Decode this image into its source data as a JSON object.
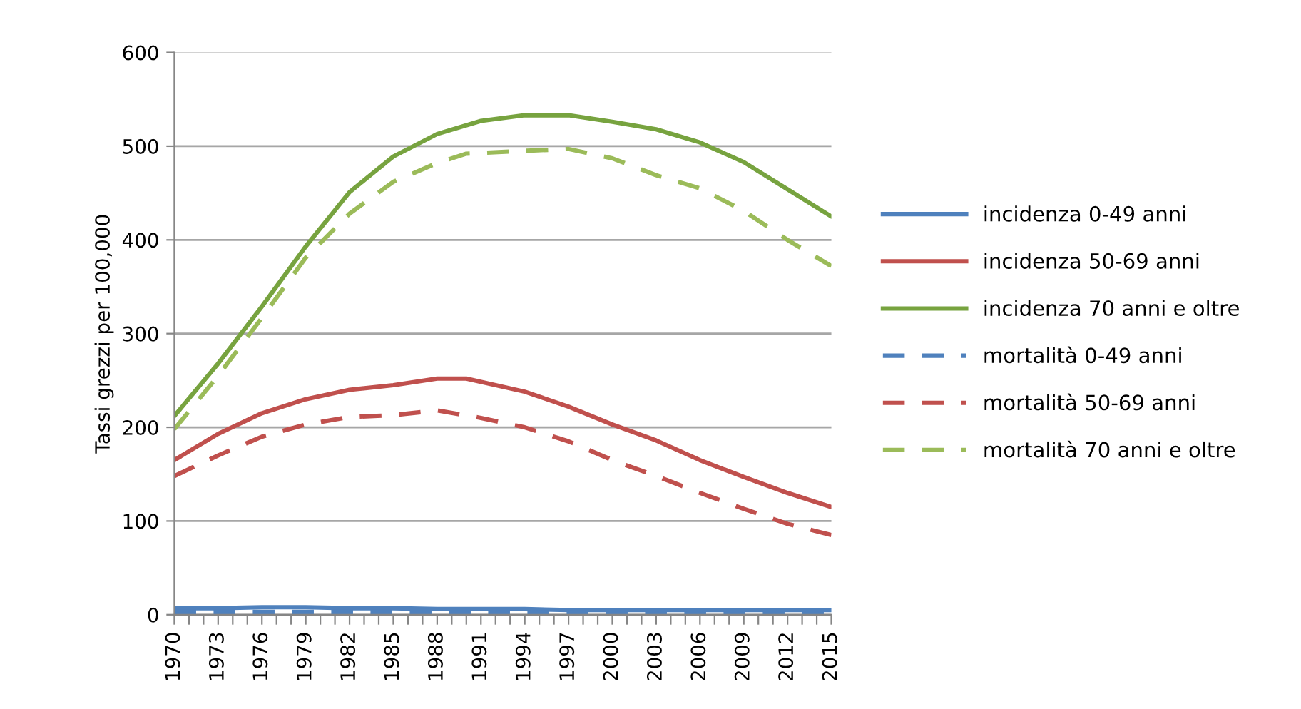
{
  "chart_data": {
    "type": "line",
    "ylabel": "Tassi grezzi per 100,000",
    "xlim": [
      1970,
      2015
    ],
    "xticks": [
      1970,
      {
        "value": 1971,
        "label": null
      },
      {
        "value": 1972,
        "label": null
      },
      1973,
      {
        "value": 1974,
        "label": null
      },
      {
        "value": 1975,
        "label": null
      },
      1976,
      {
        "value": 1977,
        "label": null
      },
      {
        "value": 1978,
        "label": null
      },
      1979,
      {
        "value": 1980,
        "label": null
      },
      {
        "value": 1981,
        "label": null
      },
      1982,
      {
        "value": 1983,
        "label": null
      },
      {
        "value": 1984,
        "label": null
      },
      1985,
      {
        "value": 1986,
        "label": null
      },
      {
        "value": 1987,
        "label": null
      },
      1988,
      {
        "value": 1989,
        "label": null
      },
      {
        "value": 1990,
        "label": null
      },
      1991,
      {
        "value": 1992,
        "label": null
      },
      {
        "value": 1993,
        "label": null
      },
      1994,
      {
        "value": 1995,
        "label": null
      },
      {
        "value": 1996,
        "label": null
      },
      1997,
      {
        "value": 1998,
        "label": null
      },
      {
        "value": 1999,
        "label": null
      },
      2000,
      {
        "value": 2001,
        "label": null
      },
      {
        "value": 2002,
        "label": null
      },
      2003,
      {
        "value": 2004,
        "label": null
      },
      {
        "value": 2005,
        "label": null
      },
      2006,
      {
        "value": 2007,
        "label": null
      },
      {
        "value": 2008,
        "label": null
      },
      2009,
      {
        "value": 2010,
        "label": null
      },
      {
        "value": 2011,
        "label": null
      },
      2012,
      {
        "value": 2013,
        "label": null
      },
      {
        "value": 2014,
        "label": null
      },
      2015
    ],
    "ylim": [
      0,
      600
    ],
    "yticks": [
      0,
      100,
      200,
      300,
      400,
      500,
      600
    ],
    "grid": "y",
    "legend": "right",
    "marker": "none",
    "series": [
      {
        "name": "incidenza 0-49 anni",
        "color": "#4f81bd",
        "line_style": "solid",
        "x": [
          1970,
          1973,
          1976,
          1979,
          1982,
          1985,
          1988,
          1991,
          1994,
          1997,
          2000,
          2003,
          2006,
          2009,
          2012,
          2015
        ],
        "values": [
          7,
          7,
          8,
          8,
          7,
          7,
          6,
          6,
          6,
          5,
          5,
          5,
          5,
          5,
          5,
          5
        ]
      },
      {
        "name": "incidenza 50-69 anni",
        "color": "#c0504d",
        "line_style": "solid",
        "x": [
          1970,
          1973,
          1976,
          1979,
          1982,
          1985,
          1988,
          1990,
          1994,
          1997,
          2000,
          2003,
          2006,
          2009,
          2012,
          2015
        ],
        "values": [
          165,
          193,
          215,
          230,
          240,
          245,
          252,
          252,
          238,
          222,
          203,
          186,
          165,
          147,
          130,
          115
        ]
      },
      {
        "name": "incidenza 70 anni e oltre",
        "color": "#77a33f",
        "line_style": "solid",
        "x": [
          1970,
          1973,
          1976,
          1979,
          1982,
          1985,
          1988,
          1991,
          1994,
          1997,
          2000,
          2003,
          2006,
          2009,
          2012,
          2015
        ],
        "values": [
          212,
          268,
          329,
          393,
          451,
          489,
          513,
          527,
          533,
          533,
          526,
          518,
          504,
          483,
          454,
          425
        ]
      },
      {
        "name": "mortalità 0-49 anni",
        "color": "#4f81bd",
        "line_style": "dashed",
        "x": [
          1970,
          1985,
          2000,
          2015
        ],
        "values": [
          3,
          3,
          2,
          2
        ]
      },
      {
        "name": "mortalità 50-69 anni",
        "color": "#c0504d",
        "line_style": "dashed",
        "x": [
          1970,
          1973,
          1976,
          1979,
          1982,
          1985,
          1988,
          1991,
          1994,
          1997,
          2000,
          2003,
          2006,
          2009,
          2012,
          2015
        ],
        "values": [
          148,
          170,
          190,
          203,
          211,
          213,
          218,
          210,
          200,
          185,
          165,
          148,
          130,
          113,
          97,
          85
        ]
      },
      {
        "name": "mortalità 70 anni e oltre",
        "color": "#9bbb59",
        "line_style": "dashed",
        "x": [
          1970,
          1973,
          1976,
          1979,
          1982,
          1985,
          1988,
          1990,
          1994,
          1997,
          2000,
          2003,
          2006,
          2009,
          2012,
          2015
        ],
        "values": [
          198,
          255,
          317,
          381,
          428,
          462,
          482,
          492,
          495,
          497,
          487,
          469,
          455,
          431,
          400,
          372
        ]
      }
    ]
  }
}
